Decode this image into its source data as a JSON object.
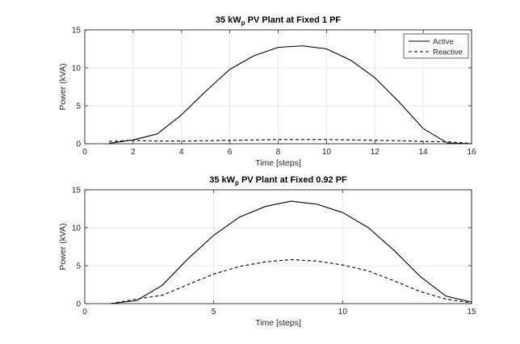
{
  "chart_data": [
    {
      "type": "line",
      "title": {
        "prefix": "35 kW",
        "subscript": "p",
        "suffix": " PV Plant at Fixed 1 PF"
      },
      "xlabel": "Time [steps]",
      "ylabel": "Power (kVA)",
      "xlim": [
        0,
        16
      ],
      "ylim": [
        0,
        15
      ],
      "xticks": [
        0,
        2,
        4,
        6,
        8,
        10,
        12,
        14,
        16
      ],
      "yticks": [
        0,
        5,
        10,
        15
      ],
      "grid": true,
      "legend_position": "top-right",
      "series": [
        {
          "name": "Active",
          "style": "solid",
          "x": [
            1,
            2,
            3,
            4,
            5,
            6,
            7,
            8,
            9,
            10,
            11,
            12,
            13,
            14,
            15,
            16
          ],
          "y": [
            0.05,
            0.5,
            1.3,
            3.8,
            6.9,
            9.8,
            11.6,
            12.7,
            12.9,
            12.5,
            11.0,
            8.7,
            5.5,
            2.0,
            0.1,
            0.0
          ]
        },
        {
          "name": "Reactive",
          "style": "dashed",
          "x": [
            1,
            2,
            3,
            4,
            5,
            6,
            7,
            8,
            9,
            10,
            11,
            12,
            13,
            14,
            15,
            16
          ],
          "y": [
            0.3,
            0.45,
            0.35,
            0.35,
            0.4,
            0.45,
            0.5,
            0.55,
            0.55,
            0.55,
            0.5,
            0.45,
            0.4,
            0.3,
            0.25,
            0.05
          ]
        }
      ]
    },
    {
      "type": "line",
      "title": {
        "prefix": "35 kW",
        "subscript": "p",
        "suffix": " PV Plant at Fixed 0.92 PF"
      },
      "xlabel": "Time [steps]",
      "ylabel": "Power (kVA)",
      "xlim": [
        0,
        15
      ],
      "ylim": [
        0,
        15
      ],
      "xticks": [
        0,
        5,
        10,
        15
      ],
      "yticks": [
        0,
        5,
        10,
        15
      ],
      "grid": true,
      "series": [
        {
          "name": "Active",
          "style": "solid",
          "x": [
            1,
            2,
            3,
            4,
            5,
            6,
            7,
            8,
            9,
            10,
            11,
            12,
            13,
            14,
            15
          ],
          "y": [
            0.0,
            0.4,
            2.4,
            5.9,
            9.0,
            11.4,
            12.8,
            13.5,
            13.1,
            12.0,
            10.0,
            7.0,
            3.6,
            1.0,
            0.2
          ]
        },
        {
          "name": "Reactive",
          "style": "dashed",
          "x": [
            1,
            2,
            3,
            4,
            5,
            6,
            7,
            8,
            9,
            10,
            11,
            12,
            13,
            14,
            15
          ],
          "y": [
            0.0,
            0.6,
            1.1,
            2.5,
            3.9,
            4.9,
            5.5,
            5.8,
            5.6,
            5.1,
            4.3,
            3.0,
            1.6,
            0.6,
            0.1
          ]
        }
      ]
    }
  ]
}
